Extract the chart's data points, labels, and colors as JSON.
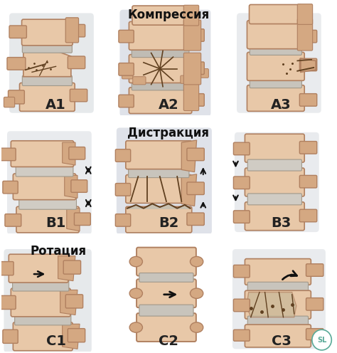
{
  "background_color_row0": "#e8d5b0",
  "background_color_row1": "#d8e0d8",
  "background_color_row2": "#e8d5b0",
  "border_color": "#666666",
  "labels": [
    [
      "A1",
      "A2",
      "A3"
    ],
    [
      "B1",
      "B2",
      "B3"
    ],
    [
      "C1",
      "C2",
      "C3"
    ]
  ],
  "row_titles": [
    "Компрессия",
    "Дистракция",
    "Ротация"
  ],
  "row_title_col": [
    1,
    1,
    0
  ],
  "label_fontsize": 14,
  "row_title_fontsize": 12,
  "fig_width": 4.74,
  "fig_height": 4.96,
  "dpi": 100,
  "watermark_text": "SL",
  "watermark_color": "#5aaa98",
  "bone_main": "#d4a882",
  "bone_light": "#e8c8a8",
  "bone_dark": "#b08060",
  "bone_shadow": "#c0a080",
  "disc_color": "#c8c0b0",
  "disc_dark": "#a0988a",
  "crack_color": "#604020",
  "arrow_color": "#111111"
}
